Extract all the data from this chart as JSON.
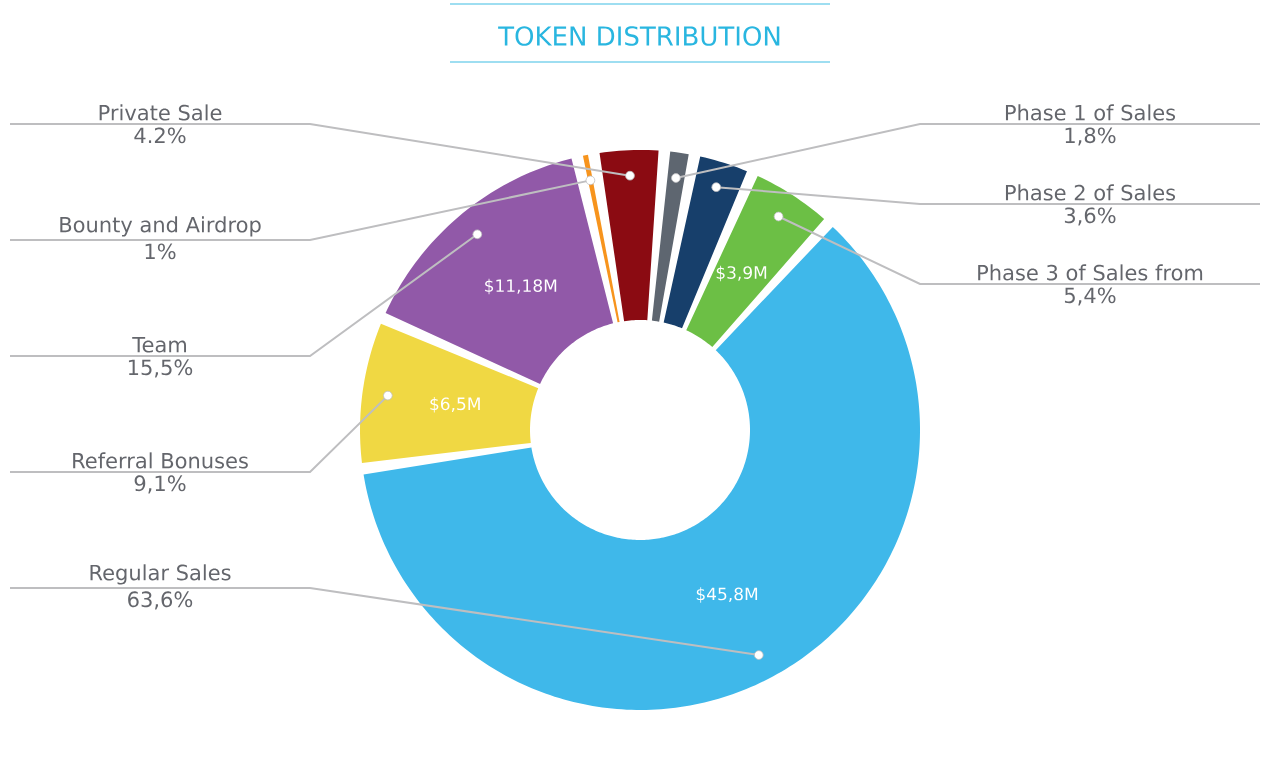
{
  "chart_data": {
    "type": "donut",
    "title": "TOKEN DISTRIBUTION",
    "categories": [
      "Phase 1 of Sales",
      "Phase 2 of Sales",
      "Phase 3 of Sales from",
      "Regular Sales",
      "Referral Bonuses",
      "Team",
      "Bounty and Airdrop",
      "Private Sale"
    ],
    "values": [
      1.8,
      3.6,
      5.4,
      63.6,
      9.1,
      15.5,
      1,
      4.2
    ],
    "value_labels": [
      "1,8%",
      "3,6%",
      "5,4%",
      "63,6%",
      "9,1%",
      "15,5%",
      "1%",
      "4.2%"
    ],
    "colors": [
      "#5e6670",
      "#173f6b",
      "#6cbf45",
      "#3fb8ea",
      "#f0d843",
      "#9159a8",
      "#f7941d",
      "#8b0b12"
    ],
    "annotations": [
      {
        "text": "$3,9M",
        "x": "Phase 3 of Sales from"
      },
      {
        "text": "$45,8M",
        "x": "Regular Sales"
      },
      {
        "text": "$6,5M",
        "x": "Referral Bonuses"
      },
      {
        "text": "$11,18M",
        "x": "Team"
      }
    ]
  }
}
